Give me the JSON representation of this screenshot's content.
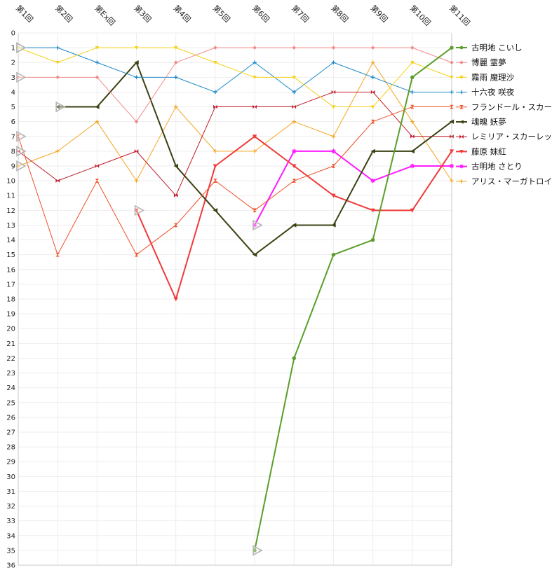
{
  "chart_data": {
    "type": "line",
    "title": "",
    "xlabel": "",
    "ylabel": "",
    "y_inverted": true,
    "ylim": [
      0,
      36
    ],
    "yticks": [
      0,
      1,
      2,
      3,
      4,
      5,
      6,
      7,
      8,
      9,
      10,
      11,
      12,
      13,
      14,
      15,
      16,
      17,
      18,
      19,
      20,
      21,
      22,
      23,
      24,
      25,
      26,
      27,
      28,
      29,
      30,
      31,
      32,
      33,
      34,
      35,
      36
    ],
    "categories": [
      "第1回",
      "第2回",
      "第Ex回",
      "第3回",
      "第4回",
      "第5回",
      "第6回",
      "第7回",
      "第8回",
      "第9回",
      "第10回",
      "第11回"
    ],
    "grid": true,
    "legend_placement": "right",
    "series": [
      {
        "name": "古明地 こいし",
        "color": "#5a9e2a",
        "marker": "circle",
        "width": 2,
        "values": [
          null,
          null,
          null,
          null,
          null,
          null,
          35,
          22,
          15,
          14,
          3,
          1
        ]
      },
      {
        "name": "博麗 霊夢",
        "color": "#f28b8b",
        "marker": "diamond",
        "width": 1,
        "values": [
          3,
          3,
          3,
          6,
          2,
          1,
          1,
          1,
          1,
          1,
          1,
          2
        ]
      },
      {
        "name": "霧雨 魔理沙",
        "color": "#f5d21a",
        "marker": "triangle-down",
        "width": 1,
        "values": [
          1,
          2,
          1,
          1,
          1,
          2,
          3,
          3,
          5,
          5,
          2,
          3
        ]
      },
      {
        "name": "十六夜 咲夜",
        "color": "#1e88c8",
        "marker": "plus",
        "width": 1,
        "values": [
          1,
          1,
          2,
          3,
          3,
          4,
          2,
          4,
          2,
          3,
          4,
          4
        ]
      },
      {
        "name": "フランドール・スカーレット",
        "color": "#f0522a",
        "marker": "hourglass",
        "width": 1,
        "values": [
          7,
          15,
          10,
          15,
          13,
          10,
          12,
          10,
          9,
          6,
          5,
          5
        ]
      },
      {
        "name": "魂魄 妖夢",
        "color": "#3a4212",
        "marker": "triangle-left",
        "width": 2,
        "values": [
          null,
          5,
          5,
          2,
          9,
          12,
          15,
          13,
          13,
          8,
          8,
          6
        ]
      },
      {
        "name": "レミリア・スカーレット",
        "color": "#c01a28",
        "marker": "bowtie",
        "width": 1,
        "values": [
          8,
          10,
          9,
          8,
          11,
          5,
          5,
          5,
          4,
          4,
          7,
          7
        ]
      },
      {
        "name": "藤原 妹紅",
        "color": "#f03a3a",
        "marker": "triangle-down",
        "width": 2,
        "values": [
          null,
          null,
          null,
          12,
          18,
          9,
          7,
          9,
          11,
          12,
          12,
          8
        ]
      },
      {
        "name": "古明地 さとり",
        "color": "#ff1aff",
        "marker": "star",
        "width": 2,
        "values": [
          null,
          null,
          null,
          null,
          null,
          null,
          13,
          8,
          8,
          10,
          9,
          9
        ]
      },
      {
        "name": "アリス・マーガトロイド",
        "color": "#f5a623",
        "marker": "plus",
        "width": 1,
        "values": [
          9,
          8,
          6,
          10,
          5,
          8,
          8,
          6,
          7,
          2,
          6,
          10
        ]
      }
    ]
  }
}
